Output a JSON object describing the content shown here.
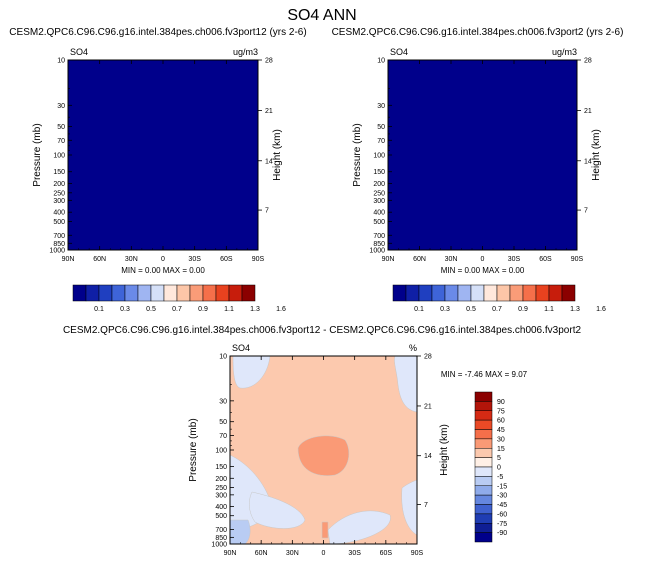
{
  "title": "SO4 ANN",
  "panels": [
    {
      "id": "p1",
      "case_title": "CESM2.QPC6.C96.C96.g16.intel.384pes.ch006.fv3port12 (yrs 2-6)",
      "var": "SO4",
      "units": "ug/m3",
      "ylabel": "Pressure (mb)",
      "ylabel_right": "Height (km)",
      "stats": "MIN =   0.00  MAX =   0.00"
    },
    {
      "id": "p2",
      "case_title": "CESM2.QPC6.C96.C96.g16.intel.384pes.ch006.fv3port2 (yrs 2-6)",
      "var": "SO4",
      "units": "ug/m3",
      "ylabel": "Pressure (mb)",
      "ylabel_right": "Height (km)",
      "stats": "MIN =   0.00  MAX =   0.00"
    }
  ],
  "diff_panel": {
    "case_title": "CESM2.QPC6.C96.C96.g16.intel.384pes.ch006.fv3port12 - CESM2.QPC6.C96.C96.g16.intel.384pes.ch006.fv3port2",
    "var": "SO4",
    "units": "%",
    "ylabel": "Pressure (mb)",
    "ylabel_right": "Height (km)",
    "stats": "MIN = -7.46  MAX =  9.07"
  },
  "chart_data": [
    {
      "type": "heatmap",
      "title": "SO4",
      "xlabel": "",
      "ylabel": "Pressure (mb)",
      "y2label": "Height (km)",
      "x_ticks": [
        "90N",
        "60N",
        "30N",
        "0",
        "30S",
        "60S",
        "90S"
      ],
      "y_ticks": [
        "10",
        "30",
        "50",
        "70",
        "100",
        "150",
        "200",
        "250",
        "300",
        "400",
        "500",
        "700",
        "850",
        "1000"
      ],
      "y2_ticks": [
        "28",
        "21",
        "14",
        "7"
      ],
      "min": 0.0,
      "max": 0.0,
      "colorbar_levels": [
        "0.1",
        "0.3",
        "0.5",
        "0.7",
        "0.9",
        "1.1",
        "1.3",
        "1.6"
      ],
      "colors": [
        "#00008b",
        "#0f1fa6",
        "#1f3fc0",
        "#3e64d8",
        "#6a8ae8",
        "#9fb5f2",
        "#d5e0f8",
        "#ffe8dc",
        "#fcc6a8",
        "#fa9c78",
        "#f56f4a",
        "#e8421f",
        "#c71d0c",
        "#8b0000"
      ]
    },
    {
      "type": "heatmap",
      "title": "SO4",
      "xlabel": "",
      "ylabel": "Pressure (mb)",
      "y2label": "Height (km)",
      "x_ticks": [
        "90N",
        "60N",
        "30N",
        "0",
        "30S",
        "60S",
        "90S"
      ],
      "y_ticks": [
        "10",
        "30",
        "50",
        "70",
        "100",
        "150",
        "200",
        "250",
        "300",
        "400",
        "500",
        "700",
        "850",
        "1000"
      ],
      "y2_ticks": [
        "28",
        "21",
        "14",
        "7"
      ],
      "min": 0.0,
      "max": 0.0,
      "colorbar_levels": [
        "0.1",
        "0.3",
        "0.5",
        "0.7",
        "0.9",
        "1.1",
        "1.3",
        "1.6"
      ]
    },
    {
      "type": "heatmap",
      "title": "SO4",
      "xlabel": "",
      "ylabel": "Pressure (mb)",
      "y2label": "Height (km)",
      "x_ticks": [
        "90N",
        "60N",
        "30N",
        "0",
        "30S",
        "60S",
        "90S"
      ],
      "y_ticks": [
        "10",
        "30",
        "50",
        "70",
        "100",
        "150",
        "200",
        "250",
        "300",
        "400",
        "500",
        "700",
        "850",
        "1000"
      ],
      "y2_ticks": [
        "28",
        "21",
        "14",
        "7"
      ],
      "min": -7.46,
      "max": 9.07,
      "colorbar_levels": [
        "90",
        "75",
        "60",
        "45",
        "30",
        "15",
        "5",
        "0",
        "-5",
        "-15",
        "-30",
        "-45",
        "-60",
        "-75",
        "-90"
      ],
      "colors": [
        "#8b0000",
        "#b3150a",
        "#d52a14",
        "#ea4a26",
        "#f56f4a",
        "#fa9a76",
        "#fcc9ae",
        "#fff0e6",
        "#dfe7fa",
        "#b9ccf3",
        "#8fabea",
        "#6587df",
        "#3f61cf",
        "#1f3db3",
        "#0f1e94",
        "#00008b"
      ]
    }
  ]
}
